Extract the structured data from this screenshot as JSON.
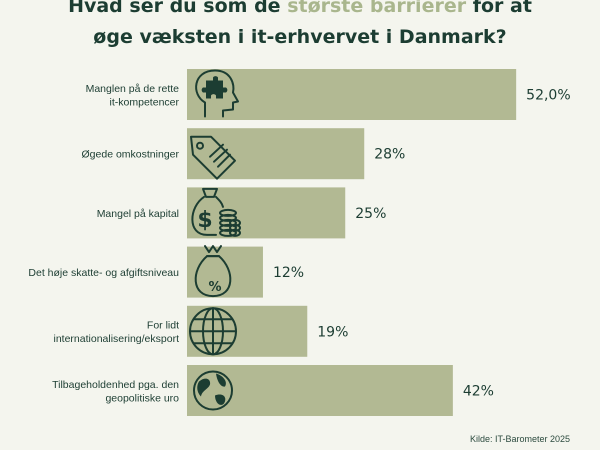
{
  "title": {
    "line1_pre": "Hvad ser du som de ",
    "line1_highlight": "største barrierer",
    "line1_post": " for at",
    "line2": "øge væksten i it-erhvervet i Danmark?"
  },
  "source": "Kilde: IT-Barometer 2025",
  "colors": {
    "bar": "#b2b993",
    "text": "#1c3d32",
    "accent": "#a9b68d",
    "background": "#f4f5ee"
  },
  "chart_data": {
    "type": "bar",
    "orientation": "horizontal",
    "categories": [
      [
        "Manglen på de rette",
        "it-kompetencer"
      ],
      [
        "Øgede omkostninger"
      ],
      [
        "Mangel på kapital"
      ],
      [
        "Det høje skatte- og afgiftsniveau"
      ],
      [
        "For lidt",
        "internationalisering/eksport"
      ],
      [
        "Tilbageholdenhed pga. den",
        "geopolitiske uro"
      ]
    ],
    "values": [
      52.0,
      28,
      25,
      12,
      19,
      42
    ],
    "value_labels": [
      "52,0%",
      "28%",
      "25%",
      "12%",
      "19%",
      "42%"
    ],
    "icons": [
      "head-puzzle-icon",
      "price-tag-icon",
      "money-bag-coins-icon",
      "percent-bag-icon",
      "globe-grid-icon",
      "earth-icon"
    ],
    "xlim": [
      0,
      52
    ],
    "grid": false,
    "legend": "none"
  }
}
